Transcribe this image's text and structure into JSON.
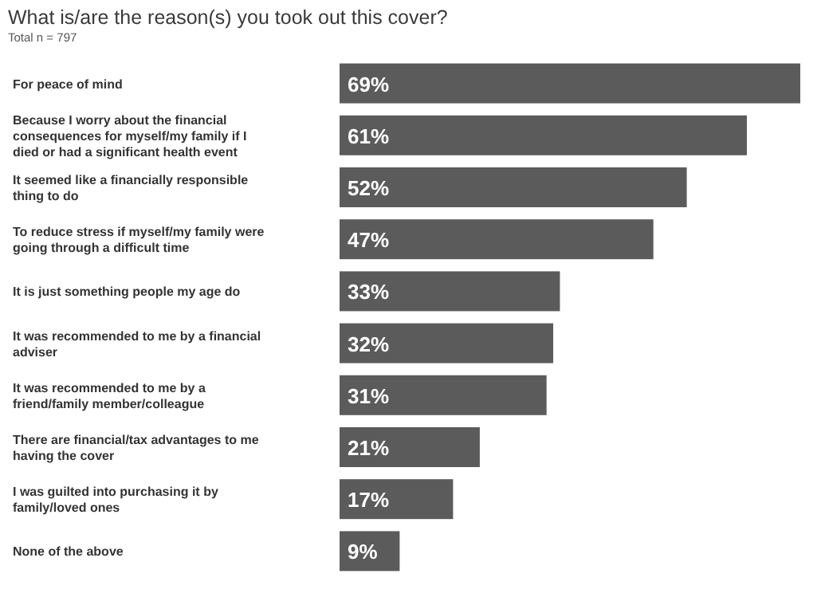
{
  "chart_data": {
    "type": "bar",
    "orientation": "horizontal",
    "title": "What is/are the reason(s) you took out this cover?",
    "subtitle": "Total n = 797",
    "categories": [
      "For peace of mind",
      "Because I worry about the financial consequences for myself/my family if I died or had a significant health event",
      "It seemed like a financially responsible thing to do",
      "To reduce stress if myself/my family were going through a difficult time",
      "It is just something people my age do",
      "It was recommended to me by a financial adviser",
      "It was recommended to me by a friend/family member/colleague",
      "There are financial/tax advantages to me having the cover",
      "I was guilted into purchasing it by family/loved ones",
      "None of the above"
    ],
    "values": [
      69,
      61,
      52,
      47,
      33,
      32,
      31,
      21,
      17,
      9
    ],
    "value_labels": [
      "69%",
      "61%",
      "52%",
      "47%",
      "33%",
      "32%",
      "31%",
      "21%",
      "17%",
      "9%"
    ],
    "color": "#5b5b5b"
  }
}
